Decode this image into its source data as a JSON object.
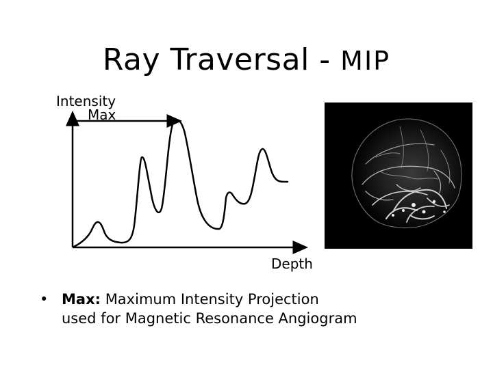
{
  "slide": {
    "title_main": "Ray Traversal -",
    "title_mip": "MIP"
  },
  "diagram": {
    "y_axis_label": "Intensity",
    "max_label": "Max",
    "x_axis_label": "Depth"
  },
  "image": {
    "description_icon": "mra-angiogram-image"
  },
  "bullet": {
    "marker": "•",
    "term": "Max:",
    "line1": " Maximum Intensity Projection",
    "line2": "used for Magnetic Resonance Angiogram"
  },
  "colors": {
    "background": "#ffffff",
    "ink": "#000000",
    "image_background": "#000000"
  }
}
